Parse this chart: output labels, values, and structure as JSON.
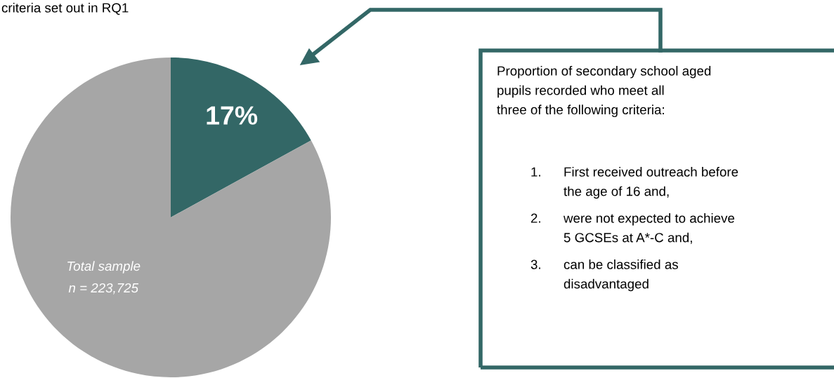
{
  "chart_data": {
    "type": "pie",
    "categories": [
      null,
      null
    ],
    "values": [
      17,
      83
    ],
    "colors": [
      "#336766",
      "#a6a6a6"
    ],
    "value_labels": [
      "17%",
      null
    ],
    "annotations": [
      "criteria set out in RQ1",
      "Total sample\nn = 223,725",
      "Proportion of secondary school aged\npupils recorded who meet all\nthree of the following criteria:",
      "1. First received outreach before\nthe age of 16 and,",
      "2. were not expected to achieve\n5 GCSEs at A*-C and,",
      "3. can be classified as\ndisadvantaged"
    ]
  }
}
